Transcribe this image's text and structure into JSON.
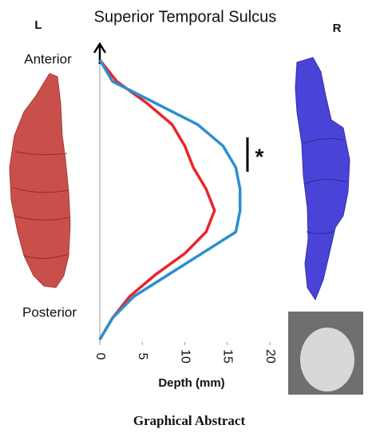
{
  "chart_data": {
    "type": "line",
    "orientation": "horizontal",
    "title": "Superior Temporal Sulcus",
    "xlabel": "Depth (mm)",
    "xlim": [
      0,
      20
    ],
    "xticks": [
      0,
      5,
      10,
      15,
      20
    ],
    "top_label": "Anterior",
    "bottom_label": "Posterior",
    "annotation": "*",
    "categories": [
      null,
      null,
      null,
      null,
      null,
      null,
      null,
      null,
      null,
      null,
      null,
      null,
      null,
      null
    ],
    "series": [
      {
        "name": "L",
        "color": "#e8262a",
        "values": [
          0,
          2,
          5.5,
          8.5,
          10,
          11,
          12.5,
          13.5,
          12.5,
          10,
          6.5,
          3.5,
          1.5,
          0
        ]
      },
      {
        "name": "R",
        "color": "#2b8fd0",
        "values": [
          0,
          1.5,
          6.5,
          11.5,
          14.5,
          16,
          16.5,
          16.5,
          16,
          12,
          8,
          4,
          1.5,
          0
        ]
      }
    ]
  },
  "caption": "Graphical Abstract"
}
